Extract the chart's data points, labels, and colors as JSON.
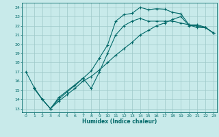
{
  "xlabel": "Humidex (Indice chaleur)",
  "bg_color": "#c8eaea",
  "grid_color": "#9ec8c8",
  "line_color": "#006868",
  "xlim_min": -0.5,
  "xlim_max": 23.4,
  "ylim_min": 12.6,
  "ylim_max": 24.5,
  "xticks": [
    0,
    1,
    2,
    3,
    4,
    5,
    6,
    7,
    8,
    9,
    10,
    11,
    12,
    13,
    14,
    15,
    16,
    17,
    18,
    19,
    20,
    21,
    22,
    23
  ],
  "yticks": [
    13,
    14,
    15,
    16,
    17,
    18,
    19,
    20,
    21,
    22,
    23,
    24
  ],
  "curve1_x": [
    0,
    1,
    2,
    3,
    4,
    7,
    8,
    9,
    10,
    11,
    12,
    13,
    14,
    15,
    16,
    17,
    18,
    19,
    20,
    21,
    22,
    23
  ],
  "curve1_y": [
    17,
    15.3,
    14.0,
    13.0,
    14.2,
    16.3,
    17.1,
    18.5,
    19.9,
    22.5,
    23.2,
    23.35,
    24.0,
    23.75,
    23.85,
    23.8,
    23.45,
    23.3,
    22.1,
    22.1,
    21.85,
    21.2
  ],
  "curve2_x": [
    1,
    2,
    3,
    4,
    5,
    6,
    7,
    8,
    9,
    10,
    11,
    12,
    13,
    14,
    15,
    16,
    17,
    18,
    19,
    20,
    21,
    22,
    23
  ],
  "curve2_y": [
    15.2,
    14.0,
    13.0,
    14.0,
    14.8,
    15.5,
    16.3,
    15.2,
    17.0,
    19.0,
    21.0,
    22.0,
    22.5,
    22.8,
    22.5,
    22.5,
    22.5,
    22.5,
    22.3,
    22.1,
    21.8,
    21.8,
    21.2
  ],
  "curve3_x": [
    1,
    2,
    3,
    4,
    5,
    6,
    7,
    8,
    9,
    10,
    11,
    12,
    13,
    14,
    15,
    16,
    17,
    18,
    19,
    20,
    21,
    22,
    23
  ],
  "curve3_y": [
    15.2,
    14.0,
    13.0,
    13.8,
    14.5,
    15.2,
    16.0,
    16.5,
    17.2,
    18.0,
    18.8,
    19.5,
    20.2,
    21.0,
    21.5,
    22.0,
    22.3,
    22.7,
    23.0,
    22.0,
    22.0,
    21.8,
    21.2
  ]
}
